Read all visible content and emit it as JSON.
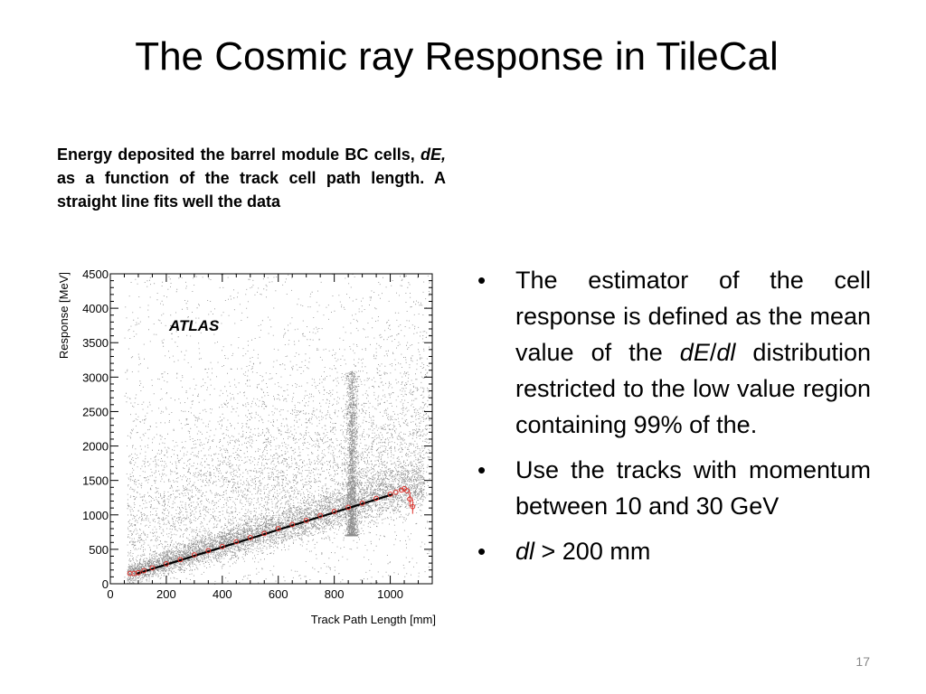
{
  "slide": {
    "title": "The Cosmic ray Response in TileCal",
    "page_number": "17"
  },
  "caption": {
    "part1": "Energy deposited the barrel module BC cells, ",
    "italic": "dE,",
    "part2": " as a function of the track cell path length. A straight line fits well the data"
  },
  "bullets": [
    {
      "parts": [
        {
          "text": "The estimator of the cell response is defined as  the mean value of the ",
          "italic": false
        },
        {
          "text": "dE",
          "italic": true
        },
        {
          "text": "/",
          "italic": false
        },
        {
          "text": "dl",
          "italic": true
        },
        {
          "text": " distribution restricted to the low value region containing 99% of the.",
          "italic": false
        }
      ]
    },
    {
      "parts": [
        {
          "text": "Use the tracks with momentum between 10 and 30 GeV",
          "italic": false
        }
      ]
    },
    {
      "parts": [
        {
          "text": "dl",
          "italic": true
        },
        {
          "text": " > 200 mm",
          "italic": false
        }
      ]
    }
  ],
  "chart_data": {
    "type": "scatter",
    "title": "",
    "annotation": "ATLAS",
    "xlabel": "Track Path Length [mm]",
    "ylabel": "Response [MeV]",
    "xlim": [
      0,
      1150
    ],
    "ylim": [
      0,
      4500
    ],
    "x_ticks": [
      0,
      200,
      400,
      600,
      800,
      1000
    ],
    "y_ticks": [
      0,
      500,
      1000,
      1500,
      2000,
      2500,
      3000,
      3500,
      4000,
      4500
    ],
    "grid": false,
    "colors": {
      "scatter": "#8a8a8a",
      "profile": "#e0322b",
      "fit": "#000000"
    },
    "fit_line": {
      "x": [
        90,
        1010
      ],
      "y": [
        140,
        1300
      ]
    },
    "profile_points": {
      "x": [
        70,
        85,
        100,
        120,
        150,
        200,
        250,
        300,
        350,
        400,
        450,
        500,
        550,
        600,
        650,
        700,
        750,
        800,
        850,
        900,
        950,
        1000,
        1020,
        1040,
        1050,
        1060,
        1070,
        1080
      ],
      "y": [
        150,
        150,
        160,
        190,
        230,
        290,
        350,
        420,
        480,
        540,
        610,
        670,
        730,
        800,
        860,
        920,
        990,
        1050,
        1110,
        1170,
        1240,
        1300,
        1330,
        1360,
        1380,
        1350,
        1230,
        1120
      ]
    }
  }
}
